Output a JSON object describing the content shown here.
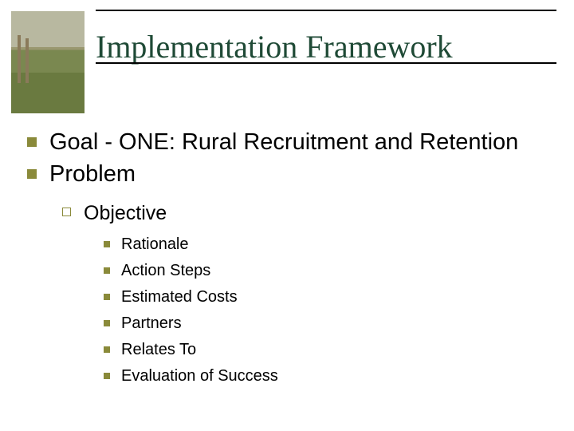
{
  "slide": {
    "title": "Implementation Framework",
    "title_color": "#1f4a36",
    "title_fontfamily": "Times New Roman",
    "title_fontsize": 40,
    "rule_color": "#000000",
    "background_color": "#ffffff",
    "bullet_color": "#8a8a3a",
    "level1": [
      {
        "text": "Goal - ONE: Rural Recruitment and Retention"
      },
      {
        "text": "Problem"
      }
    ],
    "level2": {
      "text": "Objective"
    },
    "level3": [
      "Rationale",
      "Action Steps",
      "Estimated Costs",
      "Partners",
      "Relates To",
      "Evaluation of Success"
    ],
    "fontsizes": {
      "lvl1": 29,
      "lvl2": 25,
      "lvl3": 20
    }
  }
}
